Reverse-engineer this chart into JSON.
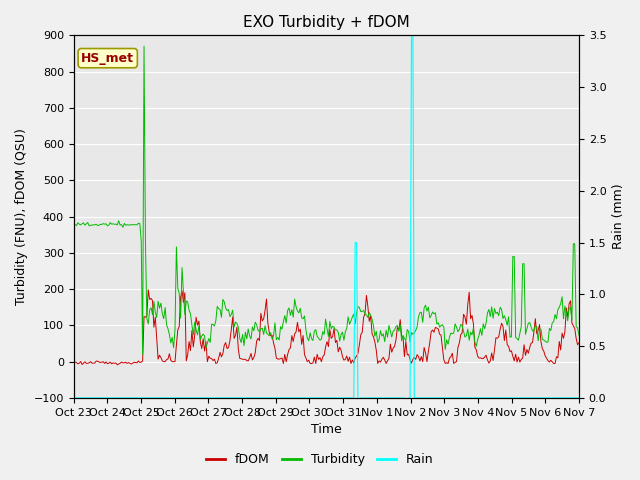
{
  "title": "EXO Turbidity + fDOM",
  "xlabel": "Time",
  "ylabel_left": "Turbidity (FNU), fDOM (QSU)",
  "ylabel_right": "Rain (mm)",
  "ylim_left": [
    -100,
    900
  ],
  "ylim_right": [
    0.0,
    3.5
  ],
  "yticks_left": [
    -100,
    0,
    100,
    200,
    300,
    400,
    500,
    600,
    700,
    800,
    900
  ],
  "yticks_right": [
    0.0,
    0.5,
    1.0,
    1.5,
    2.0,
    2.5,
    3.0,
    3.5
  ],
  "xtick_labels": [
    "Oct 23",
    "Oct 24",
    "Oct 25",
    "Oct 26",
    "Oct 27",
    "Oct 28",
    "Oct 29",
    "Oct 30",
    "Oct 31",
    "Nov 1",
    "Nov 2",
    "Nov 3",
    "Nov 4",
    "Nov 5",
    "Nov 6",
    "Nov 7"
  ],
  "fig_bg": "#f0f0f0",
  "plot_bg": "#e8e8e8",
  "fdom_color": "#cc0000",
  "turbidity_color": "#00bb00",
  "rain_color": "#00ffff",
  "annotation_label": "HS_met",
  "annotation_bg": "#ffffcc",
  "annotation_border": "#999900",
  "annotation_text_color": "#990000",
  "title_fontsize": 11,
  "axis_fontsize": 9,
  "tick_fontsize": 8,
  "legend_fontsize": 9
}
